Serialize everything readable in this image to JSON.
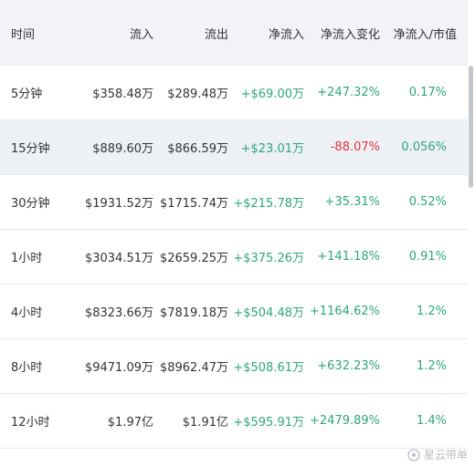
{
  "table": {
    "header": [
      "时间",
      "流入",
      "流出",
      "净流入",
      "净流入变化",
      "净流入/市值"
    ],
    "rows": [
      [
        "5分钟",
        "$358.48万",
        "$289.48万",
        "+$69.00万",
        "+247.32%",
        "0.17%"
      ],
      [
        "15分钟",
        "$889.60万",
        "$866.59万",
        "+$23.01万",
        "-88.07%",
        "0.056%"
      ],
      [
        "30分钟",
        "$1931.52万",
        "$1715.74万",
        "+$215.78万",
        "+35.31%",
        "0.52%"
      ],
      [
        "1小时",
        "$3034.51万",
        "$2659.25万",
        "+$375.26万",
        "+141.18%",
        "0.91%"
      ],
      [
        "4小时",
        "$8323.66万",
        "$7819.18万",
        "+$504.48万",
        "+1164.62%",
        "1.2%"
      ],
      [
        "8小时",
        "$9471.09万",
        "$8962.47万",
        "+$508.61万",
        "+632.23%",
        "1.2%"
      ],
      [
        "12小时",
        "$1.97亿",
        "$1.91亿",
        "+$595.91万",
        "+2479.89%",
        "1.4%"
      ]
    ],
    "highlighted_row": 1,
    "positive_color": "#2fa57c",
    "negative_color": "#e0353f"
  },
  "watermark": "星云带单"
}
